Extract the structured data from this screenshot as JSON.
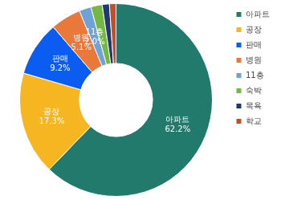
{
  "chart_data": {
    "type": "doughnut",
    "categories": [
      "아파트",
      "공장",
      "판매",
      "병원",
      "11층",
      "숙박",
      "목욕",
      "학교"
    ],
    "values": [
      62.2,
      17.3,
      9.2,
      5.1,
      2.0,
      1.9,
      1.2,
      1.1
    ],
    "value_labels": [
      "62.2%",
      "17.3%",
      "9.2%",
      "5.1%",
      "2.0%",
      null,
      null,
      null
    ],
    "colors": [
      "#217a6b",
      "#f5b621",
      "#0b5cf0",
      "#e8793a",
      "#6fa3d8",
      "#74b843",
      "#1f3b6e",
      "#c0502b"
    ],
    "data_labels": true,
    "legend": "right"
  }
}
